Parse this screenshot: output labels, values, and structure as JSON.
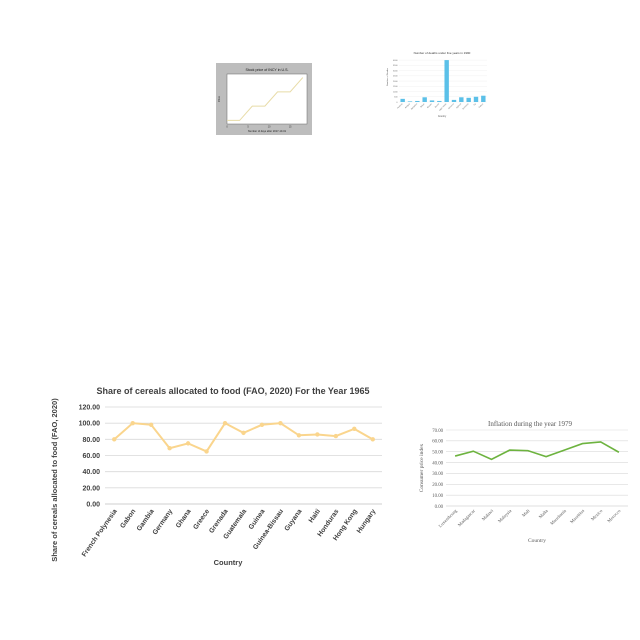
{
  "chart_data": [
    {
      "id": "stock",
      "type": "line",
      "title": "Stock price of INCY in U.S.",
      "xlabel": "Number of days after 2017-10-01",
      "ylabel": "Price",
      "x": [
        0,
        3,
        6,
        9,
        12,
        15,
        18
      ],
      "values": [
        109,
        109,
        111,
        111,
        113,
        113,
        115
      ],
      "xlim": [
        0,
        19
      ],
      "ylim": [
        108.5,
        115.5
      ],
      "xticks": [
        "0",
        "5",
        "10",
        "15"
      ],
      "colors": {
        "background": "#bdbdbd",
        "line": "#e8dca8"
      }
    },
    {
      "id": "deaths",
      "type": "bar",
      "title": "Number of deaths under five years in 1990",
      "xlabel": "Country",
      "ylabel": "Number of Deaths",
      "categories": [
        "Andorra",
        "Antigua",
        "Barbados",
        "Belize",
        "Bhutan",
        "Brunei",
        "Cape Verde",
        "Comoros",
        "Djibouti",
        "Dominica",
        "Fiji",
        "Gabon"
      ],
      "values": [
        300,
        60,
        100,
        450,
        150,
        100,
        4000,
        200,
        450,
        400,
        500,
        600
      ],
      "ylim": [
        0,
        4200
      ],
      "yticks": [
        "0",
        "500",
        "1000",
        "1500",
        "2000",
        "2500",
        "3000",
        "3500",
        "4000"
      ],
      "colors": {
        "bar": "#5bc0e8"
      }
    },
    {
      "id": "cereal",
      "type": "line",
      "title": "Share of cereals allocated to food (FAO, 2020)  For the Year 1965",
      "xlabel": "Country",
      "ylabel": "Share of cereals allocated to food (FAO, 2020)",
      "categories": [
        "French Polynesia",
        "Gabon",
        "Gambia",
        "Germany",
        "Ghana",
        "Greece",
        "Grenada",
        "Guatemala",
        "Guinea",
        "Guinea-Bissau",
        "Guyana",
        "Haiti",
        "Honduras",
        "Hong Kong",
        "Hungary"
      ],
      "values": [
        80,
        100,
        98,
        69,
        75,
        65,
        100,
        88,
        98,
        100,
        85,
        86,
        84,
        93,
        80
      ],
      "ylim": [
        0,
        120
      ],
      "yticks": [
        "0.00",
        "20.00",
        "40.00",
        "60.00",
        "80.00",
        "100.00",
        "120.00"
      ],
      "colors": {
        "line": "#fad58d",
        "grid": "#d9d9d9"
      }
    },
    {
      "id": "inflation",
      "type": "line",
      "title": "Inflation during the year 1979",
      "xlabel": "Country",
      "ylabel": "Consumer price index",
      "categories": [
        "Luxembourg",
        "Madagascar",
        "Malawi",
        "Malaysia",
        "Mali",
        "Malta",
        "Mauritania",
        "Mauritius",
        "Mexico",
        "Morocco"
      ],
      "values": [
        46,
        50.5,
        43,
        51.5,
        51,
        45.5,
        51.5,
        57.5,
        59,
        49.5
      ],
      "ylim": [
        0,
        70
      ],
      "yticks": [
        "0.00",
        "10.00",
        "20.00",
        "30.00",
        "40.00",
        "50.00",
        "60.00",
        "70.00"
      ],
      "colors": {
        "line": "#6db33f",
        "grid": "#d9d9d9"
      }
    }
  ]
}
